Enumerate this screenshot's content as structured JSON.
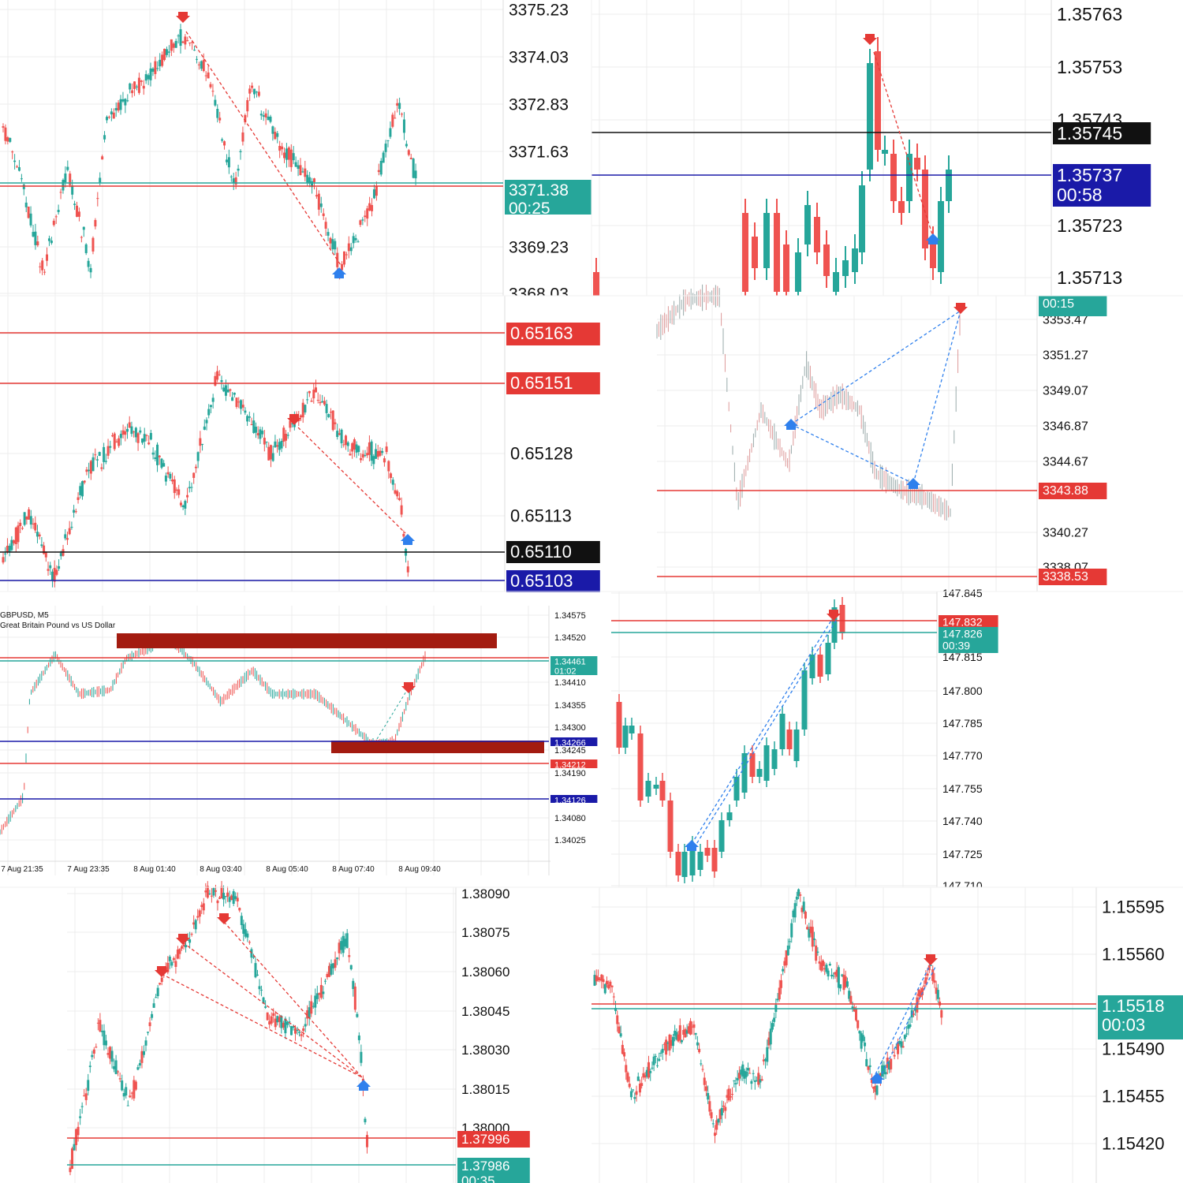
{
  "collage": {
    "panel_count": 8
  },
  "colors": {
    "bull": "#26a69a",
    "bear": "#ef5350",
    "black_line": "#111111",
    "navy": "#1a1aa8",
    "red_line": "#e53935",
    "green_line": "#26a69a",
    "grid": "#ececec",
    "bar_fill": "#a31b10",
    "signal_red": "#e53935",
    "signal_blue": "#2f80ed"
  },
  "panels": [
    {
      "id": "p1",
      "axis_labels": [
        "3375.23",
        "3374.03",
        "3372.83",
        "3371.63",
        "3369.23",
        "3368.03"
      ],
      "tags": [
        {
          "kind": "green",
          "price": "3371.38",
          "timer": "00:25"
        }
      ]
    },
    {
      "id": "p2",
      "axis_labels": [
        "1.35763",
        "1.35753",
        "1.35743",
        "1.35723",
        "1.35713"
      ],
      "tags": [
        {
          "kind": "black",
          "price": "1.35745"
        },
        {
          "kind": "navy",
          "price": "1.35737",
          "timer": "00:58"
        }
      ]
    },
    {
      "id": "p3",
      "axis_labels": [
        "0.65163",
        "0.65151",
        "0.65128",
        "0.65113",
        "0.65110",
        "0.65103"
      ],
      "tags": [
        {
          "kind": "red",
          "price": "0.65163"
        },
        {
          "kind": "red",
          "price": "0.65151"
        },
        {
          "kind": "black",
          "price": "0.65110"
        },
        {
          "kind": "navy",
          "price": "0.65103"
        }
      ]
    },
    {
      "id": "p4",
      "axis_labels": [
        "3353.47",
        "3351.27",
        "3349.07",
        "3346.87",
        "3344.67",
        "3340.27",
        "3338.07"
      ],
      "tags": [
        {
          "kind": "green",
          "timer": "00:15"
        },
        {
          "kind": "red",
          "price": "3343.88"
        },
        {
          "kind": "red",
          "price": "3338.53"
        }
      ]
    },
    {
      "id": "p5",
      "title": "GBPUSD, M5",
      "subtitle": "Great Britain Pound vs US Dollar",
      "axis_labels": [
        "1.34575",
        "1.34520",
        "1.34410",
        "1.34355",
        "1.34300",
        "1.34245",
        "1.34190",
        "1.34080",
        "1.34025"
      ],
      "time_labels": [
        "7 Aug 21:35",
        "7 Aug 23:35",
        "8 Aug 01:40",
        "8 Aug 03:40",
        "8 Aug 05:40",
        "8 Aug 07:40",
        "8 Aug 09:40"
      ],
      "tags": [
        {
          "kind": "green",
          "price": "1.34461",
          "timer": "01:02"
        },
        {
          "kind": "navy",
          "price": "1.34266"
        },
        {
          "kind": "red",
          "price": "1.34212"
        },
        {
          "kind": "navy",
          "price": "1.34126"
        }
      ]
    },
    {
      "id": "p6",
      "axis_labels": [
        "147.845",
        "147.815",
        "147.800",
        "147.785",
        "147.770",
        "147.755",
        "147.740",
        "147.725",
        "147.710"
      ],
      "tags": [
        {
          "kind": "red",
          "price": "147.832"
        },
        {
          "kind": "green",
          "price": "147.826",
          "timer": "00:39"
        }
      ]
    },
    {
      "id": "p7",
      "axis_labels": [
        "1.38090",
        "1.38075",
        "1.38060",
        "1.38045",
        "1.38030",
        "1.38015",
        "1.38000"
      ],
      "tags": [
        {
          "kind": "red",
          "price": "1.37996"
        },
        {
          "kind": "green",
          "price": "1.37986",
          "timer": "00:35"
        }
      ]
    },
    {
      "id": "p8",
      "axis_labels": [
        "1.15595",
        "1.15560",
        "1.15490",
        "1.15455",
        "1.15420"
      ],
      "tags": [
        {
          "kind": "green",
          "price": "1.15518",
          "timer": "00:03"
        }
      ]
    }
  ],
  "chart_data": [
    {
      "type": "candlestick",
      "symbol": "",
      "series_shape": [
        3372.2,
        3370.8,
        3373.4,
        3374.6,
        3373.0,
        3370.2,
        3372.9,
        3371.6,
        3368.9,
        3369.6,
        3373.1,
        3371.7
      ],
      "lines": [
        3371.38
      ],
      "signals": [
        {
          "kind": "sell",
          "at": 3374.9
        },
        {
          "kind": "buy",
          "at": 3368.7
        }
      ],
      "ylim": [
        3367.8,
        3375.5
      ]
    },
    {
      "type": "candlestick",
      "symbol": "",
      "series_shape": [
        1.35725,
        1.35731,
        1.35722,
        1.35728,
        1.3572,
        1.3574,
        1.35761,
        1.35745,
        1.35748,
        1.35719,
        1.35737
      ],
      "lines": [
        1.35745,
        1.35737
      ],
      "signals": [
        {
          "kind": "sell",
          "at": 1.35759
        },
        {
          "kind": "buy",
          "at": 1.35721
        }
      ],
      "ylim": [
        1.35708,
        1.35767
      ]
    },
    {
      "type": "candlestick",
      "symbol": "",
      "series_shape": [
        0.6511,
        0.65119,
        0.65132,
        0.65144,
        0.65152,
        0.65145,
        0.65146,
        0.65136,
        0.65112,
        0.65102
      ],
      "lines": [
        0.65163,
        0.65151,
        0.6511,
        0.65103
      ],
      "signals": [
        {
          "kind": "sell",
          "at": 0.65141
        },
        {
          "kind": "buy",
          "at": 0.65115
        }
      ],
      "ylim": [
        0.651,
        0.65173
      ]
    },
    {
      "type": "line",
      "symbol": "",
      "series_shape": [
        3352.1,
        3353.8,
        3350.5,
        3345.2,
        3347.8,
        3344.9,
        3347.1,
        3349.5,
        3347.0,
        3348.1,
        3343.2,
        3342.4,
        3341.7,
        3343.2,
        3353.8
      ],
      "lines": [
        3343.88,
        3338.53
      ],
      "signals": [
        {
          "kind": "buy",
          "at": 3346.9
        },
        {
          "kind": "buy",
          "at": 3343.4
        },
        {
          "kind": "sell",
          "at": 3354.2
        }
      ],
      "ylim": [
        3337.5,
        3354.2
      ]
    },
    {
      "type": "line",
      "symbol": "GBPUSD, M5",
      "x": [
        "7 Aug 21:35",
        "7 Aug 23:35",
        "8 Aug 01:40",
        "8 Aug 03:40",
        "8 Aug 05:40",
        "8 Aug 07:40",
        "8 Aug 09:40"
      ],
      "series_shape": [
        1.3414,
        1.3433,
        1.3444,
        1.344,
        1.3445,
        1.3452,
        1.3447,
        1.3438,
        1.3441,
        1.3439,
        1.3438,
        1.3426,
        1.3425,
        1.3433,
        1.34461
      ],
      "lines": [
        1.34266,
        1.34212,
        1.34126
      ],
      "zones": [
        {
          "from": 1.34487,
          "to": 1.34512
        },
        {
          "from": 1.3425,
          "to": 1.34271
        }
      ],
      "ylim": [
        1.34,
        1.346
      ]
    },
    {
      "type": "candlestick",
      "symbol": "",
      "series_shape": [
        147.778,
        147.77,
        147.758,
        147.752,
        147.728,
        147.726,
        147.733,
        147.745,
        147.76,
        147.768,
        147.775,
        147.79,
        147.806,
        147.82,
        147.837,
        147.826
      ],
      "lines": [
        147.832,
        147.826
      ],
      "signals": [
        {
          "kind": "buy",
          "at": 147.73
        },
        {
          "kind": "sell",
          "at": 147.834
        }
      ],
      "ylim": [
        147.708,
        147.847
      ]
    },
    {
      "type": "candlestick",
      "symbol": "",
      "series_shape": [
        1.38,
        1.3803,
        1.3805,
        1.3804,
        1.38065,
        1.3809,
        1.38078,
        1.38045,
        1.38038,
        1.3805,
        1.3807,
        1.3806,
        1.38015,
        1.37986
      ],
      "lines": [
        1.37996,
        1.37986
      ],
      "signals": [
        {
          "kind": "sell",
          "at": 1.38057
        },
        {
          "kind": "sell",
          "at": 1.38068
        },
        {
          "kind": "sell",
          "at": 1.38078
        },
        {
          "kind": "buy",
          "at": 1.38017
        }
      ],
      "ylim": [
        1.37975,
        1.38097
      ]
    },
    {
      "type": "candlestick",
      "symbol": "",
      "series_shape": [
        1.1553,
        1.1552,
        1.15458,
        1.15486,
        1.15498,
        1.1547,
        1.15465,
        1.1552,
        1.156,
        1.1555,
        1.15535,
        1.15505,
        1.1546,
        1.1549,
        1.1556,
        1.1552
      ],
      "lines": [
        1.15518
      ],
      "signals": [
        {
          "kind": "buy",
          "at": 1.15465
        },
        {
          "kind": "sell",
          "at": 1.15568
        }
      ],
      "ylim": [
        1.154,
        1.15605
      ]
    }
  ]
}
